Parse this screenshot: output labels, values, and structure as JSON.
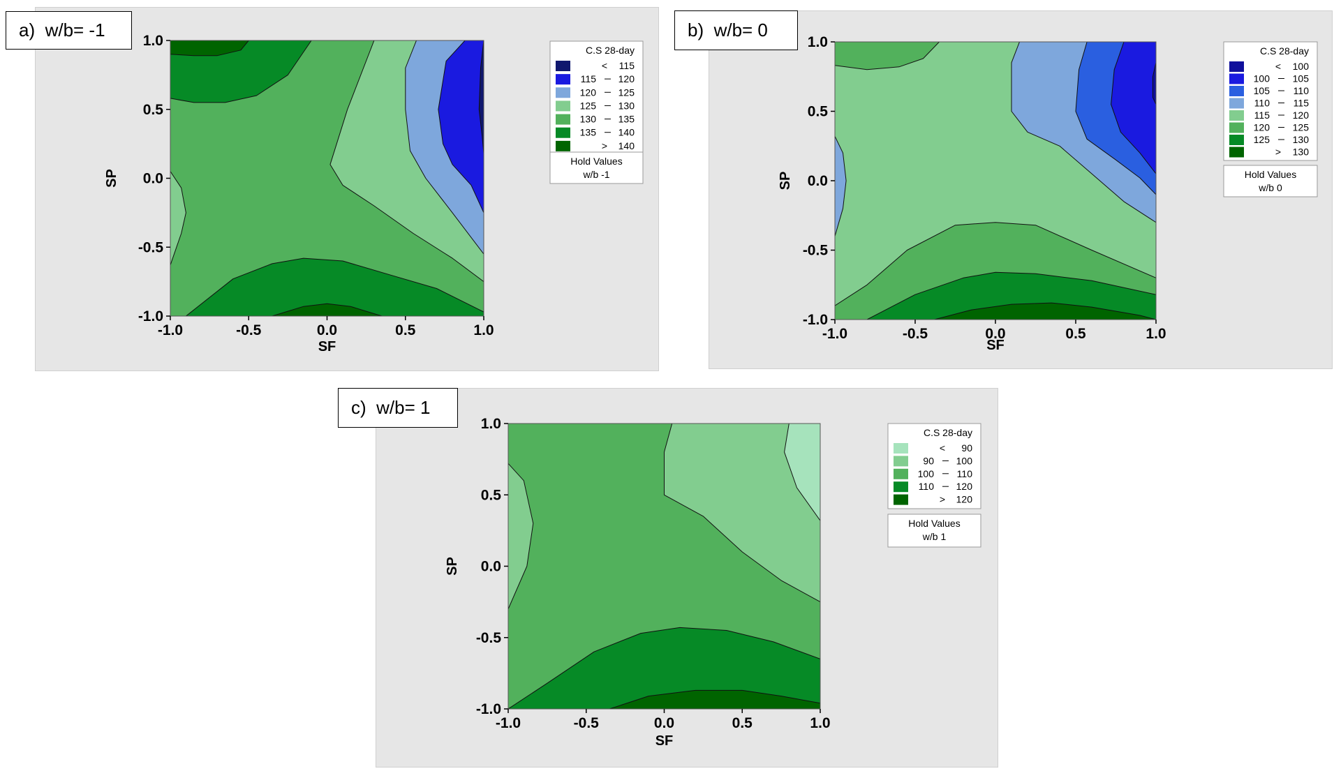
{
  "figure": {
    "panels": [
      {
        "tag": "a)  w/b= -1"
      },
      {
        "tag": "b)  w/b= 0"
      },
      {
        "tag": "c)  w/b= 1"
      }
    ]
  },
  "chart_data": [
    {
      "type": "contour",
      "panel_label": "a)  w/b= -1",
      "xlabel": "SF",
      "ylabel": "SP",
      "xlim": [
        -1.0,
        1.0
      ],
      "ylim": [
        -1.0,
        1.0
      ],
      "xticks": [
        "-1.0",
        "-0.5",
        "0.0",
        "0.5",
        "1.0"
      ],
      "yticks": [
        "-1.0",
        "-0.5",
        "0.0",
        "0.5",
        "1.0"
      ],
      "legend_title": "C.S 28-day",
      "legend": [
        {
          "op": "<",
          "lo": "",
          "hi": "115",
          "color": "#10186e"
        },
        {
          "op": "",
          "lo": "115",
          "hi": "120",
          "color": "#1a1ae0"
        },
        {
          "op": "",
          "lo": "120",
          "hi": "125",
          "color": "#7ea7dc"
        },
        {
          "op": "",
          "lo": "125",
          "hi": "130",
          "color": "#82cd8f"
        },
        {
          "op": "",
          "lo": "130",
          "hi": "135",
          "color": "#52b15c"
        },
        {
          "op": "",
          "lo": "135",
          "hi": "140",
          "color": "#068a26"
        },
        {
          "op": ">",
          "lo": "",
          "hi": "140",
          "color": "#006400"
        }
      ],
      "hold_title": "Hold Values",
      "hold_value": "w/b  -1",
      "regions": [
        {
          "name": "top-left-band",
          "fill": "#068a26",
          "points": [
            [
              -1,
              0.58
            ],
            [
              -0.85,
              0.55
            ],
            [
              -0.65,
              0.55
            ],
            [
              -0.45,
              0.6
            ],
            [
              -0.25,
              0.75
            ],
            [
              -0.1,
              1
            ],
            [
              -1,
              1
            ]
          ]
        },
        {
          "name": "top-left-core",
          "fill": "#006400",
          "points": [
            [
              -1,
              0.9
            ],
            [
              -0.85,
              0.89
            ],
            [
              -0.7,
              0.89
            ],
            [
              -0.55,
              0.93
            ],
            [
              -0.5,
              1
            ],
            [
              -1,
              1
            ]
          ]
        },
        {
          "name": "bottom-band",
          "fill": "#068a26",
          "points": [
            [
              -0.9,
              -1
            ],
            [
              -0.6,
              -0.73
            ],
            [
              -0.35,
              -0.62
            ],
            [
              -0.15,
              -0.58
            ],
            [
              0.1,
              -0.6
            ],
            [
              0.4,
              -0.7
            ],
            [
              0.7,
              -0.8
            ],
            [
              1,
              -0.97
            ],
            [
              1,
              -1
            ]
          ]
        },
        {
          "name": "bottom-core",
          "fill": "#006400",
          "points": [
            [
              -0.35,
              -1
            ],
            [
              -0.15,
              -0.93
            ],
            [
              0,
              -0.91
            ],
            [
              0.15,
              -0.93
            ],
            [
              0.35,
              -1
            ]
          ]
        },
        {
          "name": "left-bulge",
          "fill": "#82cd8f",
          "points": [
            [
              -1,
              0.05
            ],
            [
              -0.93,
              -0.07
            ],
            [
              -0.9,
              -0.25
            ],
            [
              -0.93,
              -0.4
            ],
            [
              -1,
              -0.63
            ]
          ]
        },
        {
          "name": "right-region",
          "fill": "#82cd8f",
          "points": [
            [
              0.3,
              1
            ],
            [
              0.13,
              0.5
            ],
            [
              0.02,
              0.1
            ],
            [
              0.1,
              -0.05
            ],
            [
              0.3,
              -0.2
            ],
            [
              0.55,
              -0.4
            ],
            [
              0.8,
              -0.58
            ],
            [
              1,
              -0.75
            ],
            [
              1,
              1
            ]
          ]
        },
        {
          "name": "right-band",
          "fill": "#7ea7dc",
          "points": [
            [
              0.57,
              1
            ],
            [
              0.5,
              0.8
            ],
            [
              0.5,
              0.5
            ],
            [
              0.53,
              0.2
            ],
            [
              0.63,
              0
            ],
            [
              0.8,
              -0.25
            ],
            [
              1,
              -0.55
            ],
            [
              1,
              1
            ]
          ]
        },
        {
          "name": "right-core",
          "fill": "#1a1ae0",
          "points": [
            [
              0.88,
              1
            ],
            [
              0.76,
              0.85
            ],
            [
              0.71,
              0.5
            ],
            [
              0.74,
              0.25
            ],
            [
              0.8,
              0.1
            ],
            [
              0.92,
              -0.05
            ],
            [
              1,
              -0.25
            ],
            [
              1,
              1
            ]
          ]
        },
        {
          "name": "right-edge",
          "fill": "#10186e",
          "points": [
            [
              1,
              1
            ],
            [
              0.98,
              0.8
            ],
            [
              0.97,
              0.5
            ],
            [
              0.99,
              0.3
            ],
            [
              1,
              0.18
            ]
          ]
        }
      ]
    },
    {
      "type": "contour",
      "panel_label": "b)  w/b= 0",
      "xlabel": "SF",
      "ylabel": "SP",
      "xlim": [
        -1.0,
        1.0
      ],
      "ylim": [
        -1.0,
        1.0
      ],
      "xticks": [
        "-1.0",
        "-0.5",
        "0.0",
        "0.5",
        "1.0"
      ],
      "yticks": [
        "-1.0",
        "-0.5",
        "0.0",
        "0.5",
        "1.0"
      ],
      "legend_title": "C.S 28-day",
      "legend": [
        {
          "op": "<",
          "lo": "",
          "hi": "100",
          "color": "#10109c"
        },
        {
          "op": "",
          "lo": "100",
          "hi": "105",
          "color": "#1a1ae0"
        },
        {
          "op": "",
          "lo": "105",
          "hi": "110",
          "color": "#2a5fe0"
        },
        {
          "op": "",
          "lo": "110",
          "hi": "115",
          "color": "#7ea7dc"
        },
        {
          "op": "",
          "lo": "115",
          "hi": "120",
          "color": "#82cd8f"
        },
        {
          "op": "",
          "lo": "120",
          "hi": "125",
          "color": "#52b15c"
        },
        {
          "op": "",
          "lo": "125",
          "hi": "130",
          "color": "#068a26"
        },
        {
          "op": ">",
          "lo": "",
          "hi": "130",
          "color": "#006400"
        }
      ],
      "hold_title": "Hold Values",
      "hold_value": "w/b  0",
      "regions": [
        {
          "name": "top-left",
          "fill": "#52b15c",
          "points": [
            [
              -1,
              1
            ],
            [
              -1,
              0.83
            ],
            [
              -0.8,
              0.8
            ],
            [
              -0.6,
              0.82
            ],
            [
              -0.45,
              0.88
            ],
            [
              -0.35,
              1
            ]
          ]
        },
        {
          "name": "left-edge",
          "fill": "#7ea7dc",
          "points": [
            [
              -1,
              0.32
            ],
            [
              -0.95,
              0.2
            ],
            [
              -0.93,
              0
            ],
            [
              -0.95,
              -0.2
            ],
            [
              -1,
              -0.4
            ]
          ]
        },
        {
          "name": "bottom-band-1",
          "fill": "#52b15c",
          "points": [
            [
              -1,
              -0.9
            ],
            [
              -0.8,
              -0.75
            ],
            [
              -0.55,
              -0.5
            ],
            [
              -0.25,
              -0.32
            ],
            [
              0,
              -0.3
            ],
            [
              0.25,
              -0.32
            ],
            [
              0.6,
              -0.5
            ],
            [
              1,
              -0.7
            ],
            [
              1,
              -1
            ],
            [
              -1,
              -1
            ]
          ]
        },
        {
          "name": "bottom-band-2",
          "fill": "#068a26",
          "points": [
            [
              -0.8,
              -1
            ],
            [
              -0.5,
              -0.82
            ],
            [
              -0.2,
              -0.7
            ],
            [
              0,
              -0.66
            ],
            [
              0.25,
              -0.67
            ],
            [
              0.6,
              -0.72
            ],
            [
              1,
              -0.82
            ],
            [
              1,
              -1
            ]
          ]
        },
        {
          "name": "bottom-core",
          "fill": "#006400",
          "points": [
            [
              -0.38,
              -1
            ],
            [
              -0.15,
              -0.93
            ],
            [
              0.1,
              -0.89
            ],
            [
              0.35,
              -0.88
            ],
            [
              0.6,
              -0.91
            ],
            [
              0.9,
              -0.97
            ],
            [
              1,
              -1
            ]
          ]
        },
        {
          "name": "right-band-1",
          "fill": "#7ea7dc",
          "points": [
            [
              0.15,
              1
            ],
            [
              0.1,
              0.85
            ],
            [
              0.1,
              0.5
            ],
            [
              0.2,
              0.35
            ],
            [
              0.4,
              0.25
            ],
            [
              0.6,
              0.05
            ],
            [
              0.8,
              -0.15
            ],
            [
              1,
              -0.3
            ],
            [
              1,
              1
            ]
          ]
        },
        {
          "name": "right-band-2",
          "fill": "#2a5fe0",
          "points": [
            [
              0.57,
              1
            ],
            [
              0.52,
              0.8
            ],
            [
              0.5,
              0.5
            ],
            [
              0.57,
              0.3
            ],
            [
              0.75,
              0.15
            ],
            [
              0.9,
              0.02
            ],
            [
              1,
              -0.1
            ],
            [
              1,
              1
            ]
          ]
        },
        {
          "name": "right-band-3",
          "fill": "#1a1ae0",
          "points": [
            [
              0.8,
              1
            ],
            [
              0.74,
              0.8
            ],
            [
              0.72,
              0.55
            ],
            [
              0.78,
              0.35
            ],
            [
              0.9,
              0.2
            ],
            [
              1,
              0.05
            ],
            [
              1,
              1
            ]
          ]
        },
        {
          "name": "right-edge",
          "fill": "#10109c",
          "points": [
            [
              1,
              0.85
            ],
            [
              0.98,
              0.75
            ],
            [
              0.98,
              0.6
            ],
            [
              1,
              0.55
            ]
          ]
        }
      ]
    },
    {
      "type": "contour",
      "panel_label": "c)  w/b= 1",
      "xlabel": "SF",
      "ylabel": "SP",
      "xlim": [
        -1.0,
        1.0
      ],
      "ylim": [
        -1.0,
        1.0
      ],
      "xticks": [
        "-1.0",
        "-0.5",
        "0.0",
        "0.5",
        "1.0"
      ],
      "yticks": [
        "-1.0",
        "-0.5",
        "0.0",
        "0.5",
        "1.0"
      ],
      "legend_title": "C.S 28-day",
      "legend": [
        {
          "op": "<",
          "lo": "",
          "hi": "90",
          "color": "#a6e3bc"
        },
        {
          "op": "",
          "lo": "90",
          "hi": "100",
          "color": "#82cd8f"
        },
        {
          "op": "",
          "lo": "100",
          "hi": "110",
          "color": "#52b15c"
        },
        {
          "op": "",
          "lo": "110",
          "hi": "120",
          "color": "#068a26"
        },
        {
          "op": ">",
          "lo": "",
          "hi": "120",
          "color": "#006400"
        }
      ],
      "hold_title": "Hold Values",
      "hold_value": "w/b  1",
      "regions": [
        {
          "name": "left-bulge",
          "fill": "#82cd8f",
          "points": [
            [
              -1,
              0.72
            ],
            [
              -0.9,
              0.6
            ],
            [
              -0.84,
              0.3
            ],
            [
              -0.88,
              0
            ],
            [
              -1,
              -0.3
            ]
          ]
        },
        {
          "name": "bottom-band",
          "fill": "#068a26",
          "points": [
            [
              -1,
              -1
            ],
            [
              -0.75,
              -0.82
            ],
            [
              -0.45,
              -0.6
            ],
            [
              -0.15,
              -0.47
            ],
            [
              0.1,
              -0.43
            ],
            [
              0.4,
              -0.45
            ],
            [
              0.7,
              -0.53
            ],
            [
              1,
              -0.65
            ],
            [
              1,
              -1
            ]
          ]
        },
        {
          "name": "bottom-core",
          "fill": "#006400",
          "points": [
            [
              -0.35,
              -1
            ],
            [
              -0.1,
              -0.91
            ],
            [
              0.2,
              -0.87
            ],
            [
              0.5,
              -0.87
            ],
            [
              0.75,
              -0.91
            ],
            [
              1,
              -0.96
            ],
            [
              1,
              -1
            ]
          ]
        },
        {
          "name": "right-region",
          "fill": "#82cd8f",
          "points": [
            [
              0.05,
              1
            ],
            [
              0,
              0.8
            ],
            [
              0,
              0.5
            ],
            [
              0.25,
              0.35
            ],
            [
              0.5,
              0.1
            ],
            [
              0.75,
              -0.1
            ],
            [
              1,
              -0.25
            ],
            [
              1,
              1
            ]
          ]
        },
        {
          "name": "right-edge",
          "fill": "#a6e3bc",
          "points": [
            [
              0.8,
              1
            ],
            [
              0.77,
              0.8
            ],
            [
              0.85,
              0.55
            ],
            [
              1,
              0.32
            ],
            [
              1,
              1
            ]
          ]
        }
      ]
    }
  ]
}
